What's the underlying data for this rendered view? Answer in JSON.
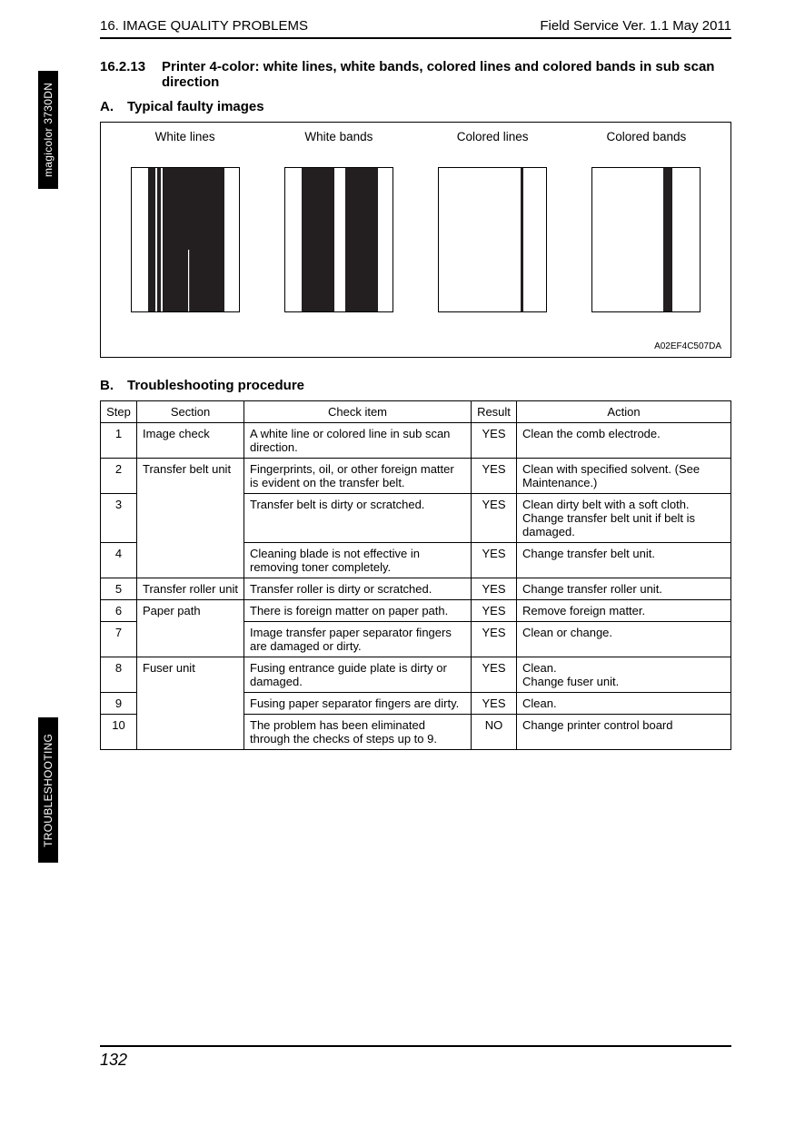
{
  "header": {
    "left": "16. IMAGE QUALITY PROBLEMS",
    "right": "Field Service Ver. 1.1 May 2011"
  },
  "tabs": {
    "top": "magicolor 3730DN",
    "bottom": "TROUBLESHOOTING"
  },
  "section": {
    "number": "16.2.13",
    "title": "Printer 4-color: white lines, white bands, colored lines and colored bands in sub scan direction"
  },
  "subA": {
    "letter": "A.",
    "text": "Typical faulty images"
  },
  "subB": {
    "letter": "B.",
    "text": "Troubleshooting procedure"
  },
  "faulty": {
    "labels": [
      "White lines",
      "White bands",
      "Colored lines",
      "Colored bands"
    ],
    "code": "A02EF4C507DA",
    "thumb_border": "#000000",
    "dark": "#231f20",
    "light": "#ffffff"
  },
  "table": {
    "headers": [
      "Step",
      "Section",
      "Check item",
      "Result",
      "Action"
    ],
    "rows": [
      {
        "step": "1",
        "section": "Image check",
        "check": "A white line or colored line in sub scan direction.",
        "result": "YES",
        "action": "Clean the comb electrode."
      },
      {
        "step": "2",
        "section": "Transfer belt unit",
        "check": "Fingerprints, oil, or other foreign matter is evident on the transfer belt.",
        "result": "YES",
        "action": "Clean with specified solvent. (See Maintenance.)"
      },
      {
        "step": "3",
        "section": "",
        "check": "Transfer belt is dirty or scratched.",
        "result": "YES",
        "action": "Clean dirty belt with a soft cloth. Change transfer belt unit if belt is damaged."
      },
      {
        "step": "4",
        "section": "",
        "check": "Cleaning blade is not effective in removing toner completely.",
        "result": "YES",
        "action": "Change transfer belt unit."
      },
      {
        "step": "5",
        "section": "Transfer roller unit",
        "check": "Transfer roller is dirty or scratched.",
        "result": "YES",
        "action": "Change transfer roller unit."
      },
      {
        "step": "6",
        "section": "Paper path",
        "check": "There is foreign matter on paper path.",
        "result": "YES",
        "action": "Remove foreign matter."
      },
      {
        "step": "7",
        "section": "",
        "check": "Image transfer paper separator fingers are damaged or dirty.",
        "result": "YES",
        "action": "Clean or change."
      },
      {
        "step": "8",
        "section": "Fuser unit",
        "check": "Fusing entrance guide plate is dirty or damaged.",
        "result": "YES",
        "action": "Clean.\nChange fuser unit."
      },
      {
        "step": "9",
        "section": "",
        "check": "Fusing paper separator fingers are dirty.",
        "result": "YES",
        "action": "Clean."
      },
      {
        "step": "10",
        "section": "",
        "check": "The problem has been eliminated through the checks of steps up to 9.",
        "result": "NO",
        "action": "Change printer control board"
      }
    ],
    "section_spans": {
      "1": 1,
      "2": 3,
      "5": 1,
      "6": 2,
      "8": 3
    }
  },
  "footer": {
    "page": "132"
  }
}
